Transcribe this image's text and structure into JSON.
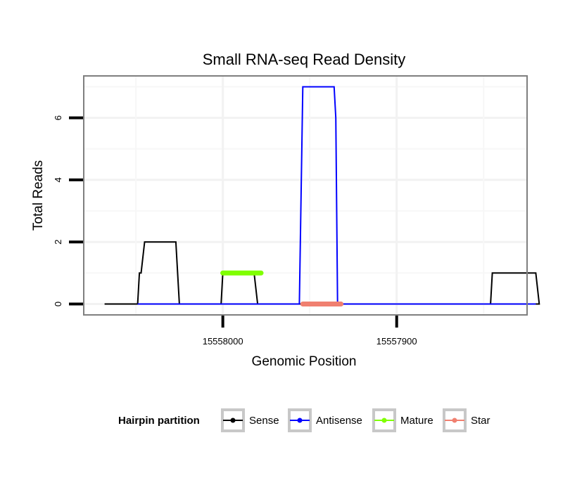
{
  "chart_data": {
    "type": "line",
    "title": "Small RNA-seq Read Density",
    "xlabel": "Genomic Position",
    "ylabel": "Total Reads",
    "x_reversed": true,
    "xlim": [
      15558080,
      15557825
    ],
    "ylim": [
      -0.35,
      7.35
    ],
    "x_ticks": [
      15558000,
      15557900
    ],
    "x_tick_labels": [
      "15558000",
      "15557900"
    ],
    "y_ticks": [
      0,
      2,
      4,
      6
    ],
    "y_tick_labels": [
      "0",
      "2",
      "4",
      "6"
    ],
    "grid": true,
    "legend_position": "bottom",
    "legend_title": "Hairpin partition",
    "series": [
      {
        "name": "Sense",
        "color": "#000000",
        "x": [
          15558068,
          15558049,
          15558048,
          15558047,
          15558045,
          15558027,
          15558025,
          15558001,
          15558000,
          15557982,
          15557980,
          15557846,
          15557845,
          15557820,
          15557818,
          15557830
        ],
        "y": [
          0,
          0,
          1,
          1,
          2,
          2,
          0,
          0,
          1,
          1,
          0,
          0,
          1,
          1,
          0,
          0
        ]
      },
      {
        "name": "Antisense",
        "color": "#0000ff",
        "x": [
          15558049,
          15557956,
          15557954,
          15557936,
          15557935,
          15557934,
          15557846,
          15557820
        ],
        "y": [
          0,
          0,
          7,
          7,
          6,
          0,
          0,
          0
        ]
      },
      {
        "name": "Mature",
        "color": "#80ff00",
        "x": [
          15558000,
          15557978
        ],
        "y": [
          1,
          1
        ]
      },
      {
        "name": "Star",
        "color": "#f08070",
        "x": [
          15557954,
          15557932
        ],
        "y": [
          0,
          0
        ]
      }
    ]
  }
}
